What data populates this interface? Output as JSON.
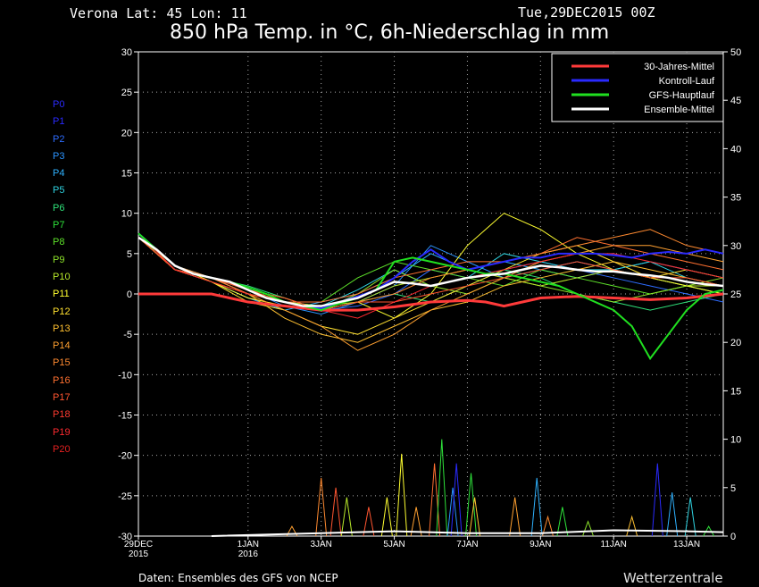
{
  "header": {
    "location": "Verona   Lat: 45 Lon: 11",
    "datetime": "Tue,29DEC2015 00Z",
    "title": "850 hPa Temp. in °C, 6h-Niederschlag in mm"
  },
  "footer": {
    "source": "Daten: Ensembles des GFS von NCEP",
    "brand": "Wetterzentrale"
  },
  "members": [
    {
      "label": "P0",
      "color": "#2a2aff"
    },
    {
      "label": "P1",
      "color": "#2a2aff"
    },
    {
      "label": "P2",
      "color": "#2e6cff"
    },
    {
      "label": "P3",
      "color": "#2b94ff"
    },
    {
      "label": "P4",
      "color": "#2fb2ff"
    },
    {
      "label": "P5",
      "color": "#2fd2e0"
    },
    {
      "label": "P6",
      "color": "#2fe27a"
    },
    {
      "label": "P7",
      "color": "#2ee23a"
    },
    {
      "label": "P8",
      "color": "#5ee22a"
    },
    {
      "label": "P9",
      "color": "#8ce22a"
    },
    {
      "label": "P10",
      "color": "#b8e82a"
    },
    {
      "label": "P11",
      "color": "#ffff30"
    },
    {
      "label": "P12",
      "color": "#ffe030"
    },
    {
      "label": "P13",
      "color": "#ffc030"
    },
    {
      "label": "P14",
      "color": "#ffa030"
    },
    {
      "label": "P15",
      "color": "#ff8a30"
    },
    {
      "label": "P16",
      "color": "#ff7030"
    },
    {
      "label": "P17",
      "color": "#ff5530"
    },
    {
      "label": "P18",
      "color": "#ff3a30"
    },
    {
      "label": "P19",
      "color": "#ff2a30"
    },
    {
      "label": "P20",
      "color": "#e52020"
    }
  ],
  "chart_data": {
    "type": "line",
    "grid": true,
    "legend_position": "top-right",
    "ylim_left": [
      -30,
      30
    ],
    "ylim_right": [
      0,
      50
    ],
    "left_ticks": [
      30,
      25,
      20,
      15,
      10,
      5,
      0,
      -5,
      -10,
      -15,
      -20,
      -25,
      -30
    ],
    "right_ticks": [
      50,
      45,
      40,
      35,
      30,
      25,
      20,
      15,
      10,
      5,
      0
    ],
    "xlim_days": [
      0,
      16
    ],
    "x_ticks": [
      {
        "day": 0,
        "label": "29DEC",
        "sub": "2015"
      },
      {
        "day": 3,
        "label": "1JAN",
        "sub": "2016"
      },
      {
        "day": 5,
        "label": "3JAN",
        "sub": ""
      },
      {
        "day": 7,
        "label": "5JAN",
        "sub": ""
      },
      {
        "day": 9,
        "label": "7JAN",
        "sub": ""
      },
      {
        "day": 11,
        "label": "9JAN",
        "sub": ""
      },
      {
        "day": 13,
        "label": "11JAN",
        "sub": ""
      },
      {
        "day": 15,
        "label": "13JAN",
        "sub": ""
      }
    ],
    "legend": [
      {
        "label": "30-Jahres-Mittel",
        "color": "#ff3a3a"
      },
      {
        "label": "Kontroll-Lauf",
        "color": "#2a2aff"
      },
      {
        "label": "GFS-Hauptlauf",
        "color": "#20e020"
      },
      {
        "label": "Ensemble-Mittel",
        "color": "#ffffff"
      }
    ],
    "series": [
      {
        "name": "30-Jahres-Mittel",
        "color": "#ff3a3a",
        "width": 3,
        "x": [
          0,
          1.5,
          2,
          3,
          4,
          5,
          6,
          7,
          8,
          9,
          9.5,
          10,
          11,
          12,
          13,
          14,
          15,
          16
        ],
        "y": [
          0,
          0,
          0,
          -1,
          -1.5,
          -2,
          -2,
          -1.6,
          -1,
          -0.8,
          -1,
          -1.5,
          -0.5,
          -0.3,
          -0.5,
          -0.7,
          -0.5,
          0
        ]
      },
      {
        "name": "Kontroll-Lauf",
        "color": "#2a2aff",
        "width": 2,
        "x": [
          0,
          0.5,
          1,
          1.5,
          2,
          2.5,
          3,
          3.5,
          4,
          4.5,
          5,
          5.5,
          6,
          6.5,
          7,
          7.5,
          8,
          8.5,
          9,
          9.5,
          10,
          10.5,
          11,
          11.5,
          12,
          12.5,
          13,
          13.5,
          14,
          14.5,
          15,
          15.5,
          16
        ],
        "y": [
          7.5,
          5.5,
          3.5,
          2.5,
          2,
          1.5,
          0.5,
          -0.5,
          -1,
          -1.5,
          -1.8,
          -1,
          -0.3,
          0.5,
          2,
          4,
          5.5,
          4,
          3,
          3.5,
          4,
          4.5,
          4.5,
          5,
          5,
          5,
          4.8,
          4.5,
          5,
          5.2,
          5,
          5.5,
          5
        ]
      },
      {
        "name": "GFS-Hauptlauf",
        "color": "#20e020",
        "width": 2,
        "x": [
          0,
          0.5,
          1,
          1.5,
          2,
          2.5,
          3,
          3.5,
          4,
          4.5,
          5,
          5.5,
          6,
          6.5,
          7,
          7.5,
          8,
          8.5,
          9,
          9.5,
          10,
          10.5,
          11,
          11.5,
          12,
          12.5,
          13,
          13.5,
          14,
          14.5,
          15,
          15.5,
          16
        ],
        "y": [
          7.5,
          5.5,
          3.5,
          2.5,
          2,
          1.5,
          0.8,
          0,
          -1,
          -1.5,
          -2,
          -1.2,
          -0.5,
          0.5,
          4,
          4.5,
          4,
          3.5,
          3,
          2.5,
          2.5,
          2,
          1.5,
          1,
          0,
          -1,
          -2,
          -4,
          -8,
          -5,
          -2,
          0,
          0.5
        ]
      },
      {
        "name": "Ensemble-Mittel",
        "color": "#ffffff",
        "width": 2.5,
        "x": [
          0,
          0.5,
          1,
          1.5,
          2,
          2.5,
          3,
          3.5,
          4,
          4.5,
          5,
          5.5,
          6,
          6.5,
          7,
          7.5,
          8,
          8.5,
          9,
          9.5,
          10,
          10.5,
          11,
          11.5,
          12,
          12.5,
          13,
          13.5,
          14,
          14.5,
          15,
          15.5,
          16
        ],
        "y": [
          7,
          5.5,
          3.5,
          2.5,
          2,
          1.5,
          0.5,
          -0.5,
          -1,
          -1.5,
          -1.5,
          -1,
          -0.5,
          0.5,
          1.5,
          1.3,
          1,
          1.5,
          2,
          2.3,
          2.5,
          3,
          3.5,
          3.3,
          3,
          2.8,
          2.8,
          2.5,
          2.3,
          2,
          1.5,
          1.2,
          1
        ]
      }
    ],
    "ensemble_members": [
      {
        "color": "#2e6cff",
        "x": [
          0,
          1,
          2,
          3,
          4,
          5,
          6,
          7,
          8,
          9,
          10,
          11,
          12,
          13,
          14,
          15,
          16
        ],
        "y": [
          7,
          3,
          2,
          0,
          -1,
          -2,
          -1.5,
          0,
          3,
          2,
          3,
          4,
          3,
          2,
          1,
          0,
          -1
        ]
      },
      {
        "color": "#2b94ff",
        "x": [
          0,
          1,
          2,
          3,
          4,
          5,
          6,
          7,
          8,
          9,
          10,
          11,
          12,
          13,
          14,
          15,
          16
        ],
        "y": [
          7.5,
          3.5,
          2,
          0.5,
          -1.5,
          -2.5,
          -1,
          1,
          6,
          4,
          2,
          3,
          4,
          3,
          2,
          1,
          0
        ]
      },
      {
        "color": "#2fb2ff",
        "x": [
          0,
          1,
          2,
          3,
          4,
          5,
          6,
          7,
          8,
          9,
          10,
          11,
          12,
          13,
          14,
          15,
          16
        ],
        "y": [
          7,
          3,
          1.5,
          -0.5,
          -2,
          -1,
          0,
          2,
          5,
          3,
          4,
          3,
          2,
          3,
          4,
          3,
          2
        ]
      },
      {
        "color": "#2fd2e0",
        "x": [
          0,
          1,
          2,
          3,
          4,
          5,
          6,
          7,
          8,
          9,
          10,
          11,
          12,
          13,
          14,
          15,
          16
        ],
        "y": [
          7,
          3.5,
          2,
          0,
          -1,
          -1.5,
          0.5,
          3,
          1,
          2,
          5,
          4,
          3,
          3,
          4,
          2,
          1
        ]
      },
      {
        "color": "#2fe27a",
        "x": [
          0,
          1,
          2,
          3,
          4,
          5,
          6,
          7,
          8,
          9,
          10,
          11,
          12,
          13,
          14,
          15,
          16
        ],
        "y": [
          7.5,
          3,
          2,
          1,
          -0.5,
          -2,
          -1,
          0,
          -1,
          1,
          3,
          2,
          0,
          -1,
          -2,
          -1,
          0
        ]
      },
      {
        "color": "#5ee22a",
        "x": [
          0,
          1,
          2,
          3,
          4,
          5,
          6,
          7,
          8,
          9,
          10,
          11,
          12,
          13,
          14,
          15,
          16
        ],
        "y": [
          7,
          3.5,
          1.5,
          0,
          -1,
          -1,
          2,
          4,
          3,
          2,
          1,
          3,
          2,
          1,
          0,
          1,
          0
        ]
      },
      {
        "color": "#8ce22a",
        "x": [
          0,
          1,
          2,
          3,
          4,
          5,
          6,
          7,
          8,
          9,
          10,
          11,
          12,
          13,
          14,
          15,
          16
        ],
        "y": [
          7.5,
          3,
          2,
          0.5,
          -0.5,
          -2,
          0,
          3,
          1,
          0,
          2,
          1,
          0,
          -1,
          0,
          1,
          2
        ]
      },
      {
        "color": "#b8e82a",
        "x": [
          0,
          1,
          2,
          3,
          4,
          5,
          6,
          7,
          8,
          9,
          10,
          11,
          12,
          13,
          14,
          15,
          16
        ],
        "y": [
          7,
          3,
          2,
          0,
          -1,
          -1.5,
          -1,
          1,
          2,
          3,
          2,
          1,
          2,
          3,
          2,
          1,
          1
        ]
      },
      {
        "color": "#ffff30",
        "x": [
          0,
          1,
          2,
          3,
          4,
          5,
          6,
          7,
          8,
          9,
          10,
          11,
          12,
          13,
          14,
          15,
          16
        ],
        "y": [
          7,
          3,
          1.5,
          -0.5,
          -1.5,
          -2,
          -1,
          -3,
          0,
          6,
          10,
          8,
          5,
          3,
          2,
          1,
          0
        ]
      },
      {
        "color": "#ffe030",
        "x": [
          0,
          1,
          2,
          3,
          4,
          5,
          6,
          7,
          8,
          9,
          10,
          11,
          12,
          13,
          14,
          15,
          16
        ],
        "y": [
          7.5,
          3.5,
          1.5,
          -1,
          -2,
          -4,
          -5,
          -3,
          -1,
          1,
          3,
          5,
          6,
          4,
          2,
          3,
          2
        ]
      },
      {
        "color": "#ffc030",
        "x": [
          0,
          1,
          2,
          3,
          4,
          5,
          6,
          7,
          8,
          9,
          10,
          11,
          12,
          13,
          14,
          15,
          16
        ],
        "y": [
          7,
          3,
          2,
          0,
          -3,
          -5,
          -6,
          -4,
          -2,
          -1,
          1,
          2,
          3,
          4,
          3,
          2,
          1
        ]
      },
      {
        "color": "#ffa030",
        "x": [
          0,
          1,
          2,
          3,
          4,
          5,
          6,
          7,
          8,
          9,
          10,
          11,
          12,
          13,
          14,
          15,
          16
        ],
        "y": [
          7,
          3,
          1.5,
          0,
          -2,
          -4,
          -7,
          -5,
          -2,
          0,
          2,
          4,
          5,
          6,
          6,
          5,
          4
        ]
      },
      {
        "color": "#ff8a30",
        "x": [
          0,
          1,
          2,
          3,
          4,
          5,
          6,
          7,
          8,
          9,
          10,
          11,
          12,
          13,
          14,
          15,
          16
        ],
        "y": [
          7.5,
          3.5,
          2,
          0.5,
          -1,
          -2,
          -1,
          0,
          2,
          3,
          4,
          5,
          6,
          7,
          8,
          6,
          5
        ]
      },
      {
        "color": "#ff7030",
        "x": [
          0,
          1,
          2,
          3,
          4,
          5,
          6,
          7,
          8,
          9,
          10,
          11,
          12,
          13,
          14,
          15,
          16
        ],
        "y": [
          7,
          3,
          2,
          0,
          -1,
          -1,
          0,
          2,
          3,
          4,
          4,
          5,
          7,
          6,
          5,
          4,
          3
        ]
      },
      {
        "color": "#ff5530",
        "x": [
          0,
          1,
          2,
          3,
          4,
          5,
          6,
          7,
          8,
          9,
          10,
          11,
          12,
          13,
          14,
          15,
          16
        ],
        "y": [
          7,
          3,
          2,
          0.5,
          -0.5,
          -2,
          -1,
          -1,
          0,
          1,
          2,
          3,
          4,
          3,
          2,
          2,
          1
        ]
      },
      {
        "color": "#ff2a30",
        "x": [
          0,
          1,
          2,
          3,
          4,
          5,
          6,
          7,
          8,
          9,
          10,
          11,
          12,
          13,
          14,
          15,
          16
        ],
        "y": [
          7.5,
          3,
          1.5,
          0,
          -1,
          -2,
          -3,
          -1,
          1,
          2,
          3,
          4,
          5,
          5,
          4,
          3,
          2
        ]
      }
    ],
    "precip_spikes": [
      {
        "x": 5.0,
        "v": 6,
        "color": "#ff8a30"
      },
      {
        "x": 5.4,
        "v": 5,
        "color": "#ff5530"
      },
      {
        "x": 5.7,
        "v": 4,
        "color": "#b8e82a"
      },
      {
        "x": 6.3,
        "v": 3,
        "color": "#ff5530"
      },
      {
        "x": 6.8,
        "v": 4,
        "color": "#ffff30"
      },
      {
        "x": 7.2,
        "v": 8.5,
        "color": "#ffff30"
      },
      {
        "x": 7.6,
        "v": 3,
        "color": "#ffa030"
      },
      {
        "x": 8.1,
        "v": 7.5,
        "color": "#ff7030"
      },
      {
        "x": 8.3,
        "v": 10,
        "color": "#2ee23a"
      },
      {
        "x": 8.6,
        "v": 5,
        "color": "#2b94ff"
      },
      {
        "x": 8.7,
        "v": 7.5,
        "color": "#2a2aff"
      },
      {
        "x": 9.1,
        "v": 6.5,
        "color": "#2ee23a"
      },
      {
        "x": 9.2,
        "v": 4,
        "color": "#ffc030"
      },
      {
        "x": 10.3,
        "v": 4,
        "color": "#ffa030"
      },
      {
        "x": 10.9,
        "v": 6,
        "color": "#2fb2ff"
      },
      {
        "x": 11.2,
        "v": 2,
        "color": "#ff8a30"
      },
      {
        "x": 11.6,
        "v": 3,
        "color": "#2ee23a"
      },
      {
        "x": 12.3,
        "v": 1.5,
        "color": "#8ce22a"
      },
      {
        "x": 13.5,
        "v": 2,
        "color": "#ffc030"
      },
      {
        "x": 14.2,
        "v": 7.5,
        "color": "#2a2aff"
      },
      {
        "x": 14.6,
        "v": 4.5,
        "color": "#2fb2ff"
      },
      {
        "x": 15.1,
        "v": 4,
        "color": "#2fd2e0"
      },
      {
        "x": 15.6,
        "v": 1,
        "color": "#2ee23a"
      },
      {
        "x": 4.2,
        "v": 1,
        "color": "#ffa030"
      }
    ]
  }
}
